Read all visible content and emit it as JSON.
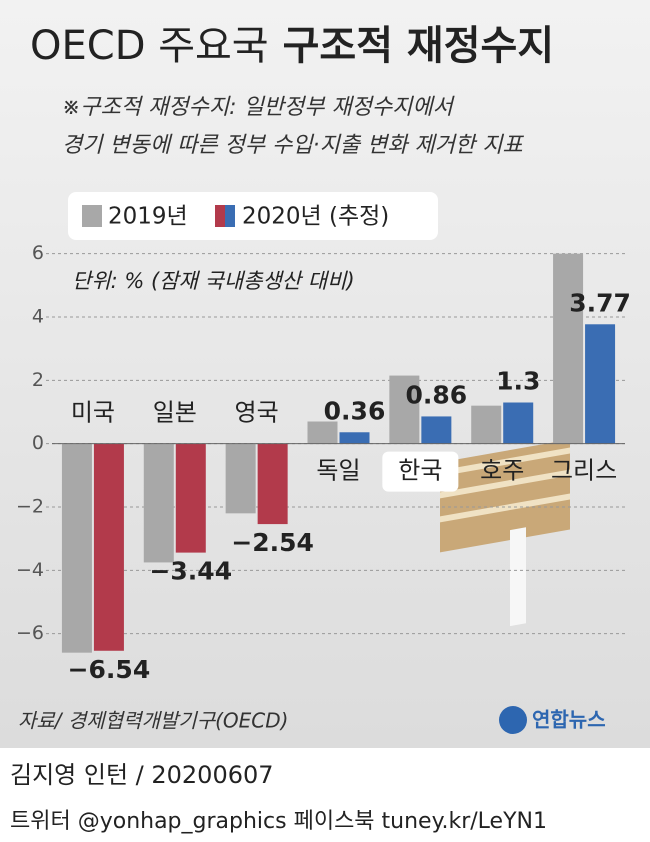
{
  "chart_data": {
    "type": "bar",
    "title": "OECD 주요국",
    "title_emphasis": "구조적 재정수지",
    "note": [
      "※구조적 재정수지: 일반정부 재정수지에서",
      "경기 변동에 따른 정부 수입·지출 변화 제거한 지표"
    ],
    "unit": "단위: % (잠재 국내총생산 대비)",
    "categories": [
      "미국",
      "일본",
      "영국",
      "독일",
      "한국",
      "호주",
      "그리스"
    ],
    "highlight_index": 4,
    "series": [
      {
        "name": "2019년",
        "color": "#a8a8a8",
        "values": [
          -6.6,
          -3.75,
          -2.2,
          0.7,
          2.15,
          1.2,
          6.0
        ]
      },
      {
        "name": "2020년 (추정)",
        "color": "#3a6db3",
        "negative_color": "#b23a4b",
        "values": [
          -6.54,
          -3.44,
          -2.54,
          0.36,
          0.86,
          1.3,
          3.77
        ],
        "value_labels": [
          "−6.54",
          "−3.44",
          "−2.54",
          "0.36",
          "0.86",
          "1.3",
          "3.77"
        ]
      }
    ],
    "ylim": [
      -6.8,
      6.4
    ],
    "yticks": [
      {
        "value": -6,
        "label": "−6"
      },
      {
        "value": -4,
        "label": "−4"
      },
      {
        "value": -2,
        "label": "−2"
      },
      0,
      2,
      4,
      6
    ],
    "grid": true,
    "source": "자료/ 경제협력개발기구(OECD)",
    "logo": "연합뉴스",
    "credit": "김지영 인턴 / 20200607",
    "social": "트위터 @yonhap_graphics  페이스북 tuney.kr/LeYN1"
  }
}
